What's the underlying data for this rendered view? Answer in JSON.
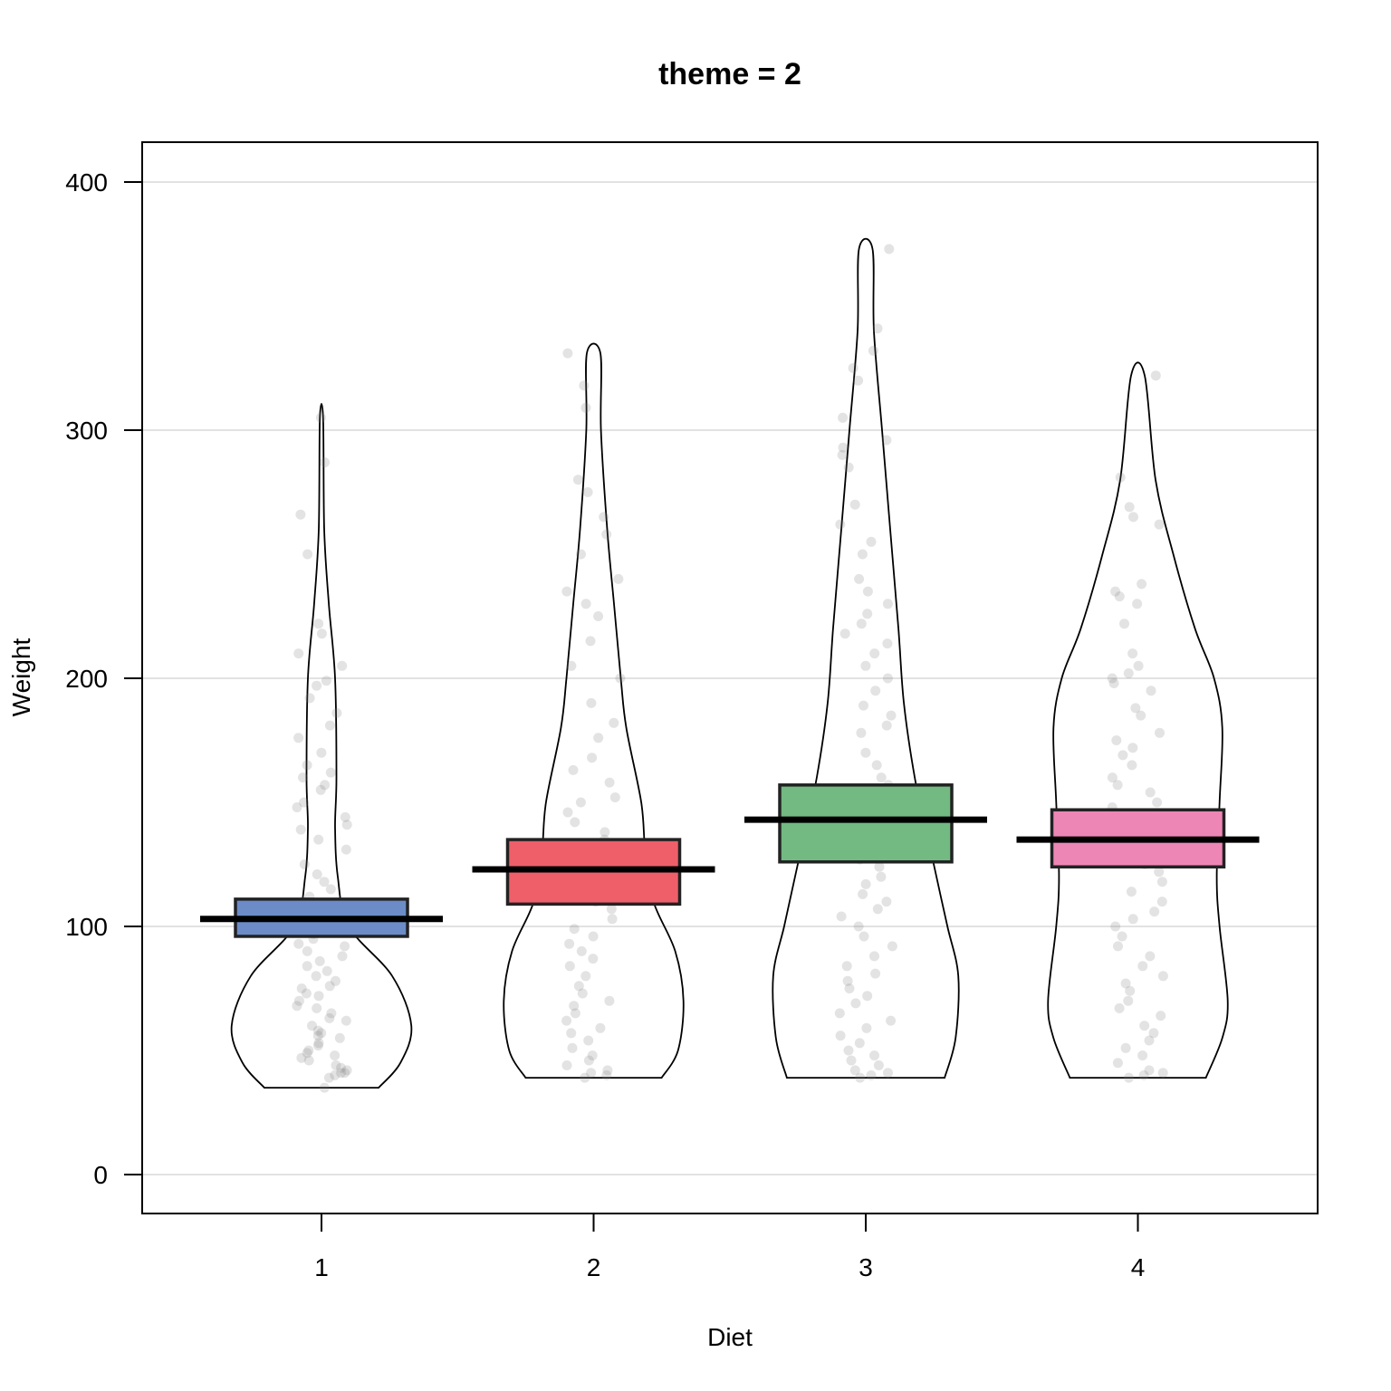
{
  "chart_data": {
    "type": "violin",
    "title": "theme = 2",
    "xlabel": "Diet",
    "ylabel": "Weight",
    "ylim": [
      -15,
      417
    ],
    "yticks": [
      0,
      100,
      200,
      300,
      400
    ],
    "grid": true,
    "categories": [
      "1",
      "2",
      "3",
      "4"
    ],
    "colors": [
      "#6b8cc7",
      "#ee5f6a",
      "#72b982",
      "#ee86b5"
    ],
    "means": [
      103,
      123,
      143,
      135
    ],
    "ci_lower": [
      96,
      109,
      126,
      124
    ],
    "ci_upper": [
      111,
      135,
      157,
      147
    ],
    "min": [
      35,
      39,
      39,
      39
    ],
    "max": [
      305,
      331,
      373,
      322
    ],
    "violins": [
      [
        [
          35,
          0.21
        ],
        [
          45,
          0.29
        ],
        [
          60,
          0.33
        ],
        [
          80,
          0.26
        ],
        [
          100,
          0.1
        ],
        [
          120,
          0.06
        ],
        [
          140,
          0.05
        ],
        [
          160,
          0.055
        ],
        [
          200,
          0.05
        ],
        [
          230,
          0.027
        ],
        [
          260,
          0.01
        ],
        [
          305,
          0.006
        ]
      ],
      [
        [
          39,
          0.25
        ],
        [
          50,
          0.31
        ],
        [
          70,
          0.33
        ],
        [
          90,
          0.3
        ],
        [
          110,
          0.22
        ],
        [
          130,
          0.19
        ],
        [
          150,
          0.175
        ],
        [
          180,
          0.12
        ],
        [
          200,
          0.1
        ],
        [
          230,
          0.075
        ],
        [
          260,
          0.05
        ],
        [
          300,
          0.027
        ],
        [
          331,
          0.025
        ]
      ],
      [
        [
          39,
          0.29
        ],
        [
          55,
          0.33
        ],
        [
          80,
          0.34
        ],
        [
          100,
          0.3
        ],
        [
          120,
          0.26
        ],
        [
          140,
          0.22
        ],
        [
          160,
          0.18
        ],
        [
          190,
          0.14
        ],
        [
          220,
          0.12
        ],
        [
          260,
          0.09
        ],
        [
          300,
          0.06
        ],
        [
          340,
          0.03
        ],
        [
          373,
          0.025
        ]
      ],
      [
        [
          39,
          0.25
        ],
        [
          55,
          0.31
        ],
        [
          70,
          0.33
        ],
        [
          100,
          0.3
        ],
        [
          120,
          0.29
        ],
        [
          150,
          0.3
        ],
        [
          180,
          0.31
        ],
        [
          200,
          0.28
        ],
        [
          220,
          0.21
        ],
        [
          250,
          0.13
        ],
        [
          280,
          0.065
        ],
        [
          322,
          0.025
        ]
      ]
    ],
    "points": [
      [
        305,
        287,
        266,
        250,
        222,
        218,
        210,
        205,
        199,
        197,
        192,
        186,
        181,
        176,
        170,
        165,
        162,
        160,
        157,
        155,
        150,
        148,
        144,
        141,
        139,
        135,
        131,
        125,
        121,
        118,
        115,
        112,
        110,
        108,
        106,
        105,
        103,
        101,
        99,
        98,
        97,
        95,
        93,
        92,
        90,
        88,
        86,
        84,
        82,
        80,
        78,
        76,
        75,
        73,
        72,
        70,
        68,
        67,
        65,
        63,
        62,
        60,
        58,
        57,
        56,
        55,
        53,
        52,
        50,
        49,
        48,
        47,
        46,
        44,
        43,
        42,
        41,
        41,
        40,
        39,
        35
      ],
      [
        331,
        318,
        309,
        280,
        275,
        265,
        258,
        250,
        240,
        235,
        230,
        225,
        215,
        205,
        200,
        190,
        182,
        176,
        168,
        163,
        158,
        152,
        150,
        146,
        142,
        138,
        135,
        131,
        128,
        125,
        122,
        120,
        117,
        115,
        113,
        110,
        107,
        103,
        99,
        96,
        93,
        90,
        87,
        84,
        80,
        76,
        73,
        70,
        68,
        65,
        62,
        59,
        57,
        54,
        51,
        48,
        46,
        44,
        42,
        41,
        40,
        39
      ],
      [
        373,
        341,
        332,
        325,
        320,
        305,
        296,
        293,
        290,
        285,
        270,
        262,
        255,
        250,
        240,
        235,
        230,
        226,
        222,
        218,
        214,
        210,
        205,
        200,
        195,
        189,
        185,
        181,
        178,
        170,
        165,
        160,
        157,
        154,
        151,
        148,
        145,
        142,
        139,
        136,
        133,
        130,
        127,
        124,
        120,
        117,
        113,
        110,
        107,
        104,
        100,
        96,
        92,
        88,
        84,
        81,
        78,
        75,
        72,
        69,
        65,
        62,
        59,
        56,
        53,
        50,
        48,
        46,
        44,
        42,
        41,
        40,
        39
      ],
      [
        322,
        281,
        269,
        265,
        262,
        238,
        235,
        233,
        230,
        222,
        210,
        205,
        202,
        200,
        198,
        195,
        188,
        185,
        178,
        175,
        172,
        169,
        165,
        160,
        157,
        154,
        150,
        148,
        145,
        142,
        139,
        136,
        133,
        130,
        128,
        125,
        122,
        118,
        114,
        110,
        106,
        103,
        100,
        96,
        92,
        88,
        84,
        80,
        77,
        74,
        70,
        67,
        64,
        60,
        57,
        54,
        51,
        48,
        45,
        42,
        41,
        40,
        39
      ]
    ]
  }
}
